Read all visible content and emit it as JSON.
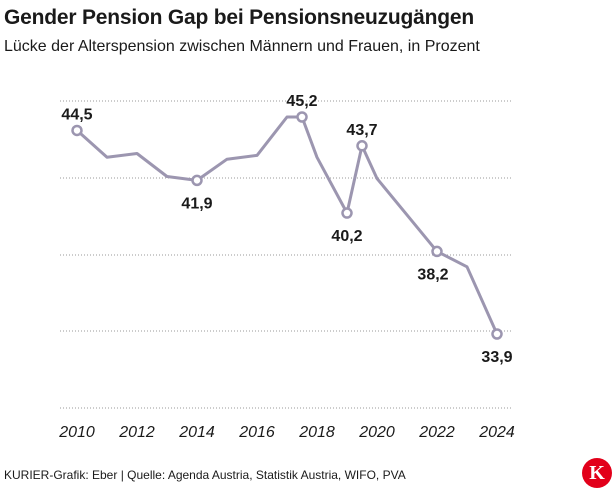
{
  "title": "Gender Pension Gap bei Pensionsneuzugängen",
  "subtitle": "Lücke der Alterspension zwischen Männern und Frauen, in Prozent",
  "source": "KURIER-Grafik: Eber | Quelle: Agenda Austria, Statistik Austria, WIFO, PVA",
  "logo_letter": "K",
  "colors": {
    "line": "#9c96b0",
    "grid": "#9a9a9a",
    "brand": "#e2001a"
  },
  "chart_data": {
    "type": "line",
    "title": "Gender Pension Gap bei Pensionsneuzugängen",
    "subtitle": "Lücke der Alterspension zwischen Männern und Frauen, in Prozent",
    "xlabel": "",
    "ylabel": "",
    "x_ticks": [
      "2010",
      "2012",
      "2014",
      "2016",
      "2018",
      "2020",
      "2022",
      "2024"
    ],
    "xlim": [
      2010,
      2024
    ],
    "ylim": [
      33.0,
      45.5
    ],
    "grid": "horizontal, dotted",
    "y_tick_labels_shown": false,
    "series": [
      {
        "x": [
          2010,
          2011,
          2012,
          2013,
          2014,
          2015,
          2016,
          2017,
          2017.5,
          2018,
          2019,
          2019.5,
          2020,
          2021,
          2022,
          2023,
          2024
        ],
        "values": [
          44.5,
          43.1,
          43.3,
          42.1,
          41.9,
          43.0,
          43.2,
          45.2,
          45.2,
          43.1,
          40.2,
          43.7,
          42.0,
          40.1,
          38.2,
          37.4,
          33.9
        ]
      }
    ],
    "data_labels": [
      {
        "x": 2010,
        "value": 44.5,
        "text": "44,5",
        "position": "above"
      },
      {
        "x": 2014,
        "value": 41.9,
        "text": "41,9",
        "position": "below"
      },
      {
        "x": 2017.5,
        "value": 45.2,
        "text": "45,2",
        "position": "above"
      },
      {
        "x": 2019,
        "value": 40.2,
        "text": "40,2",
        "position": "below"
      },
      {
        "x": 2019.5,
        "value": 43.7,
        "text": "43,7",
        "position": "above"
      },
      {
        "x": 2022,
        "value": 38.2,
        "text": "38,2",
        "position": "below-left"
      },
      {
        "x": 2024,
        "value": 33.9,
        "text": "33,9",
        "position": "below"
      }
    ]
  }
}
